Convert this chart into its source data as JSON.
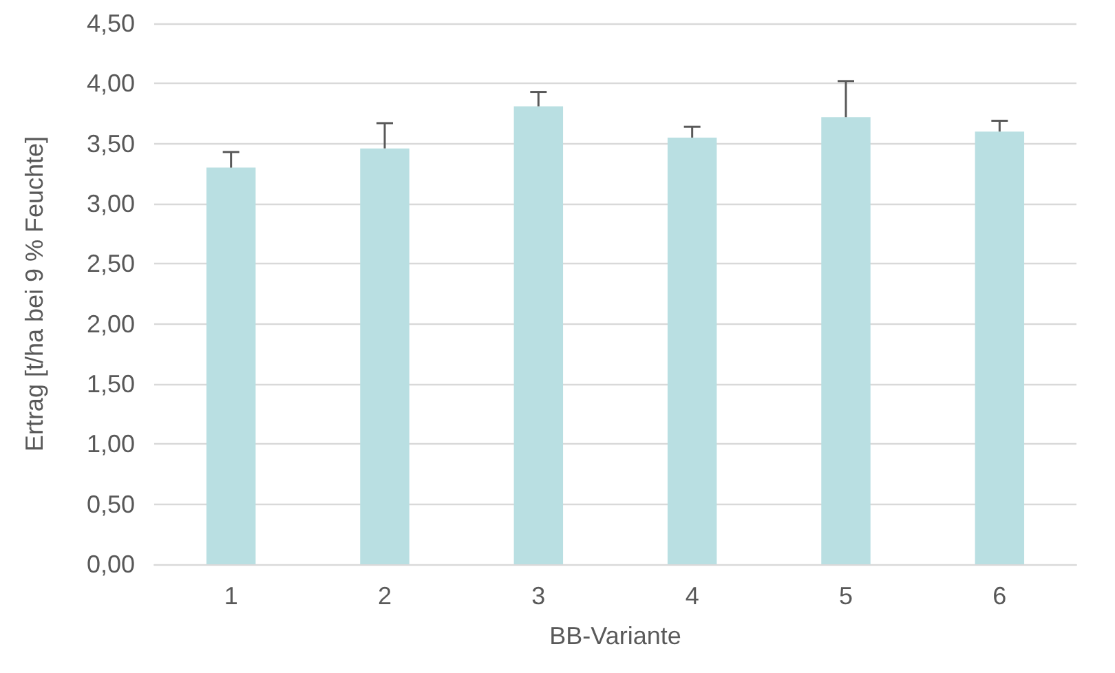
{
  "chart_data": {
    "type": "bar",
    "xlabel": "BB-Variante",
    "ylabel": "Ertrag [t/ha bei 9 % Feuchte]",
    "categories": [
      "1",
      "2",
      "3",
      "4",
      "5",
      "6"
    ],
    "series": [
      {
        "color": "#b9dfe2",
        "values": [
          3.3,
          3.46,
          3.81,
          3.55,
          3.72,
          3.6
        ],
        "errors": [
          [
            3.3,
            3.43
          ],
          [
            3.46,
            3.67
          ],
          [
            3.81,
            3.93
          ],
          [
            3.55,
            3.64
          ],
          [
            3.72,
            4.02
          ],
          [
            3.6,
            3.69
          ]
        ]
      }
    ],
    "ylim": [
      0,
      4.5
    ],
    "yticks": [
      {
        "value": 0,
        "label": "0,00"
      },
      {
        "value": 0.5,
        "label": "0,50"
      },
      {
        "value": 1,
        "label": "1,00"
      },
      {
        "value": 1.5,
        "label": "1,50"
      },
      {
        "value": 2,
        "label": "2,00"
      },
      {
        "value": 2.5,
        "label": "2,50"
      },
      {
        "value": 3,
        "label": "3,00"
      },
      {
        "value": 3.5,
        "label": "3,50"
      },
      {
        "value": 4,
        "label": "4,00"
      },
      {
        "value": 4.5,
        "label": "4,50"
      }
    ],
    "grid": "y"
  }
}
